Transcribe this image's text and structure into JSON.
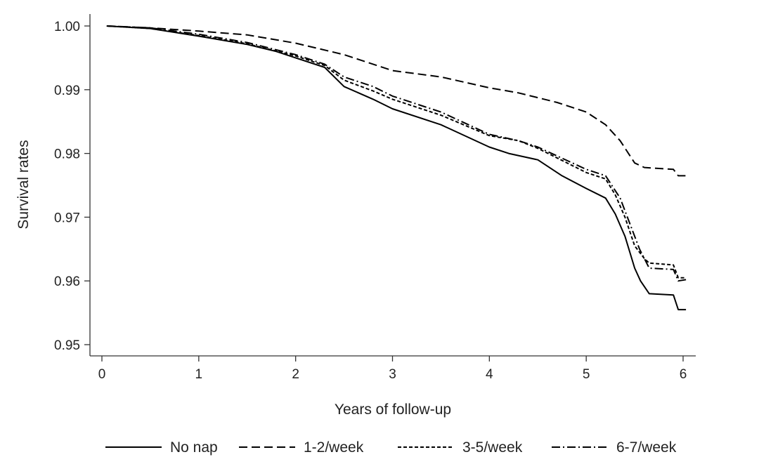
{
  "chart_data": {
    "type": "line",
    "title": "",
    "xlabel": "Years of follow-up",
    "ylabel": "Survival rates",
    "xlim": [
      0,
      6
    ],
    "ylim": [
      0.95,
      1.0
    ],
    "x_ticks": [
      0,
      1,
      2,
      3,
      4,
      5,
      6
    ],
    "x_tick_labels": [
      "0",
      "1",
      "2",
      "3",
      "4",
      "5",
      "6"
    ],
    "y_ticks": [
      0.95,
      0.96,
      0.97,
      0.98,
      0.99,
      1.0
    ],
    "y_tick_labels": [
      "0.95",
      "0.96",
      "0.97",
      "0.98",
      "0.99",
      "1.00"
    ],
    "grid": false,
    "legend_position": "bottom",
    "line_color": "#000000",
    "series": [
      {
        "name": "No nap",
        "style": "solid",
        "points": [
          [
            0.05,
            1.0
          ],
          [
            0.5,
            0.9996
          ],
          [
            1.0,
            0.9984
          ],
          [
            1.5,
            0.9971
          ],
          [
            1.8,
            0.996
          ],
          [
            2.0,
            0.995
          ],
          [
            2.3,
            0.9935
          ],
          [
            2.5,
            0.9905
          ],
          [
            2.8,
            0.9885
          ],
          [
            3.0,
            0.987
          ],
          [
            3.5,
            0.9845
          ],
          [
            4.0,
            0.981
          ],
          [
            4.2,
            0.98
          ],
          [
            4.5,
            0.979
          ],
          [
            4.75,
            0.9765
          ],
          [
            5.0,
            0.9745
          ],
          [
            5.2,
            0.973
          ],
          [
            5.3,
            0.9705
          ],
          [
            5.4,
            0.967
          ],
          [
            5.5,
            0.962
          ],
          [
            5.56,
            0.96
          ],
          [
            5.65,
            0.958
          ],
          [
            5.9,
            0.9578
          ],
          [
            5.95,
            0.9555
          ],
          [
            6.03,
            0.9555
          ]
        ]
      },
      {
        "name": "1-2/week",
        "style": "dashed",
        "points": [
          [
            0.05,
            1.0
          ],
          [
            0.5,
            0.9997
          ],
          [
            1.0,
            0.9992
          ],
          [
            1.5,
            0.9986
          ],
          [
            2.0,
            0.9973
          ],
          [
            2.5,
            0.9955
          ],
          [
            3.0,
            0.993
          ],
          [
            3.5,
            0.992
          ],
          [
            4.0,
            0.9903
          ],
          [
            4.3,
            0.9895
          ],
          [
            4.7,
            0.988
          ],
          [
            5.0,
            0.9865
          ],
          [
            5.2,
            0.9845
          ],
          [
            5.35,
            0.982
          ],
          [
            5.5,
            0.9785
          ],
          [
            5.6,
            0.9778
          ],
          [
            5.9,
            0.9775
          ],
          [
            5.95,
            0.9765
          ],
          [
            6.03,
            0.9765
          ]
        ]
      },
      {
        "name": "3-5/week",
        "style": "short-dashed",
        "points": [
          [
            0.05,
            1.0
          ],
          [
            0.5,
            0.9996
          ],
          [
            1.0,
            0.9985
          ],
          [
            1.5,
            0.9972
          ],
          [
            2.0,
            0.9953
          ],
          [
            2.3,
            0.9938
          ],
          [
            2.5,
            0.9915
          ],
          [
            2.8,
            0.9898
          ],
          [
            3.0,
            0.9885
          ],
          [
            3.5,
            0.986
          ],
          [
            4.0,
            0.9828
          ],
          [
            4.3,
            0.982
          ],
          [
            4.5,
            0.9808
          ],
          [
            5.0,
            0.977
          ],
          [
            5.2,
            0.976
          ],
          [
            5.3,
            0.9735
          ],
          [
            5.4,
            0.97
          ],
          [
            5.5,
            0.9655
          ],
          [
            5.6,
            0.9635
          ],
          [
            5.65,
            0.9628
          ],
          [
            5.9,
            0.9625
          ],
          [
            5.95,
            0.9605
          ],
          [
            6.03,
            0.9605
          ]
        ]
      },
      {
        "name": "6-7/week",
        "style": "dash-dot",
        "points": [
          [
            0.05,
            1.0
          ],
          [
            0.5,
            0.9997
          ],
          [
            1.0,
            0.9987
          ],
          [
            1.5,
            0.9974
          ],
          [
            2.0,
            0.9955
          ],
          [
            2.3,
            0.994
          ],
          [
            2.5,
            0.992
          ],
          [
            2.8,
            0.9905
          ],
          [
            3.0,
            0.989
          ],
          [
            3.5,
            0.9865
          ],
          [
            4.0,
            0.983
          ],
          [
            4.3,
            0.982
          ],
          [
            4.5,
            0.981
          ],
          [
            5.0,
            0.9775
          ],
          [
            5.2,
            0.9765
          ],
          [
            5.35,
            0.973
          ],
          [
            5.45,
            0.969
          ],
          [
            5.55,
            0.965
          ],
          [
            5.65,
            0.962
          ],
          [
            5.9,
            0.9618
          ],
          [
            5.95,
            0.96
          ],
          [
            6.03,
            0.9602
          ]
        ]
      }
    ]
  }
}
